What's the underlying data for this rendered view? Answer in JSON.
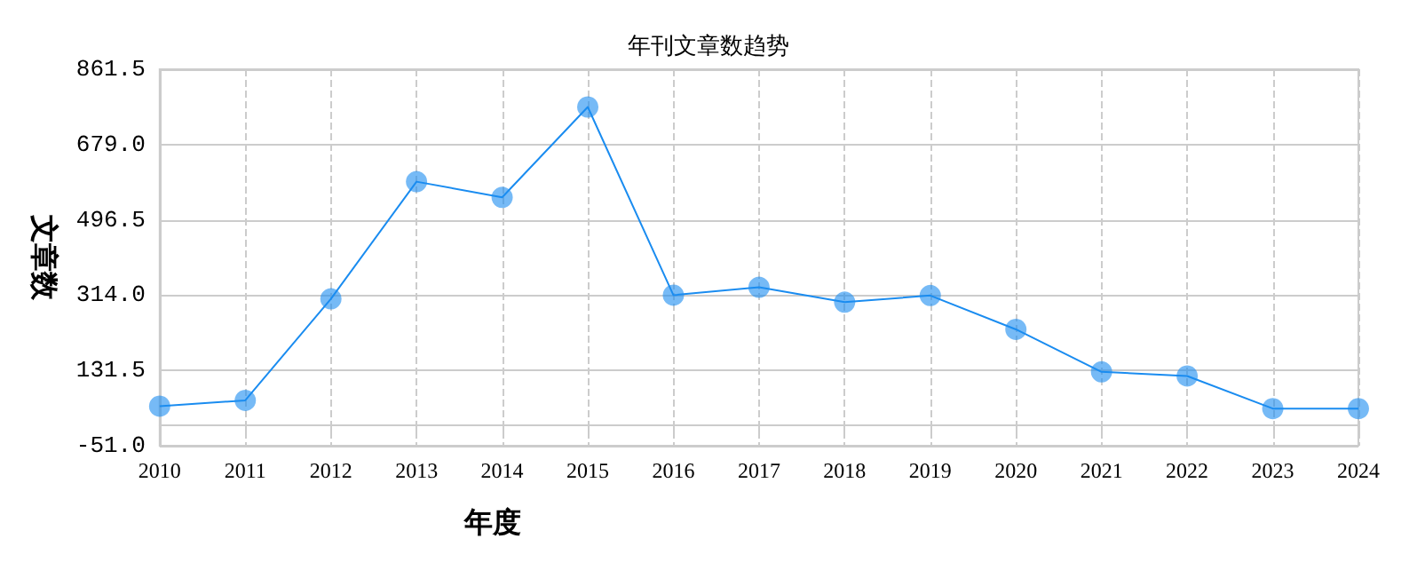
{
  "chart_data": {
    "type": "line",
    "title": "年刊文章数趋势",
    "xlabel": "年度",
    "ylabel": "文章数",
    "categories": [
      "2010",
      "2011",
      "2012",
      "2013",
      "2014",
      "2015",
      "2016",
      "2017",
      "2018",
      "2019",
      "2020",
      "2021",
      "2022",
      "2023",
      "2024"
    ],
    "series": [
      {
        "color": "#1a8cf0",
        "values": [
          45,
          59,
          305,
          589,
          551,
          770,
          314,
          333,
          297,
          313,
          231,
          128,
          118,
          39,
          39
        ]
      }
    ],
    "ylim": [
      -51,
      861.5
    ],
    "yticks": [
      {
        "value": -51,
        "label": "-51.0"
      },
      {
        "value": 131.5,
        "label": "131.5"
      },
      {
        "value": 314,
        "label": "314.0"
      },
      {
        "value": 496.5,
        "label": "496.5"
      },
      {
        "value": 679,
        "label": "679.0"
      },
      {
        "value": 861.5,
        "label": "861.5"
      }
    ],
    "grid": true,
    "marker": "circle",
    "line_style": "solid"
  }
}
